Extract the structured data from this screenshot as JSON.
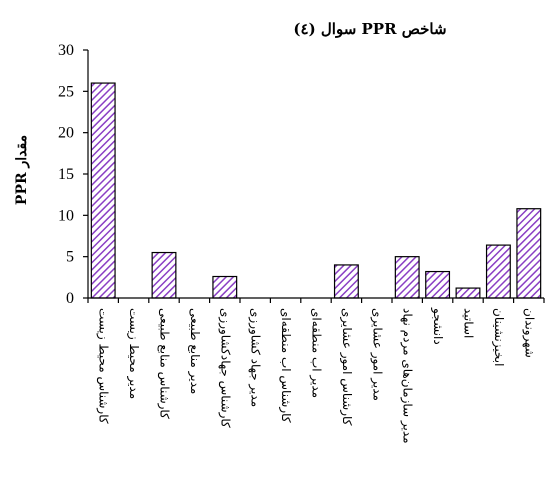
{
  "chart_data": {
    "type": "bar",
    "title": "شاخص PPR سوال (٤)",
    "ylabel": "مقدار PPR",
    "xlabel": "",
    "ylim": [
      0,
      30
    ],
    "yticks": [
      0,
      5,
      10,
      15,
      20,
      25,
      30
    ],
    "grid": false,
    "legend": "none",
    "categories": [
      "کارشناس محیط زیست",
      "مدیر محیط زیست",
      "کارشناس منابع طبیعی",
      "مدیر منابع طبیعی",
      "کارشناس جهادکشاورزی",
      "مدیر جهاد کشاورزی",
      "کارشناس اب منطقه‌ای",
      "مدیر اب منطقه‌ای",
      "کارشناس امور عشایری",
      "مدیر امور عشایری",
      "مدیر سازمان‌های مردم نهاد",
      "دانشجو",
      "اساتید",
      "ابخیزنشینان",
      "شهروندان"
    ],
    "values": [
      26,
      0,
      5.5,
      0,
      2.6,
      0,
      0,
      0,
      4.0,
      0,
      5.0,
      3.2,
      1.2,
      6.4,
      10.8
    ],
    "colors": {
      "bar_stroke": "#2a1a4a",
      "hatch": "#8a3fc4",
      "background": "#ffffff"
    }
  }
}
